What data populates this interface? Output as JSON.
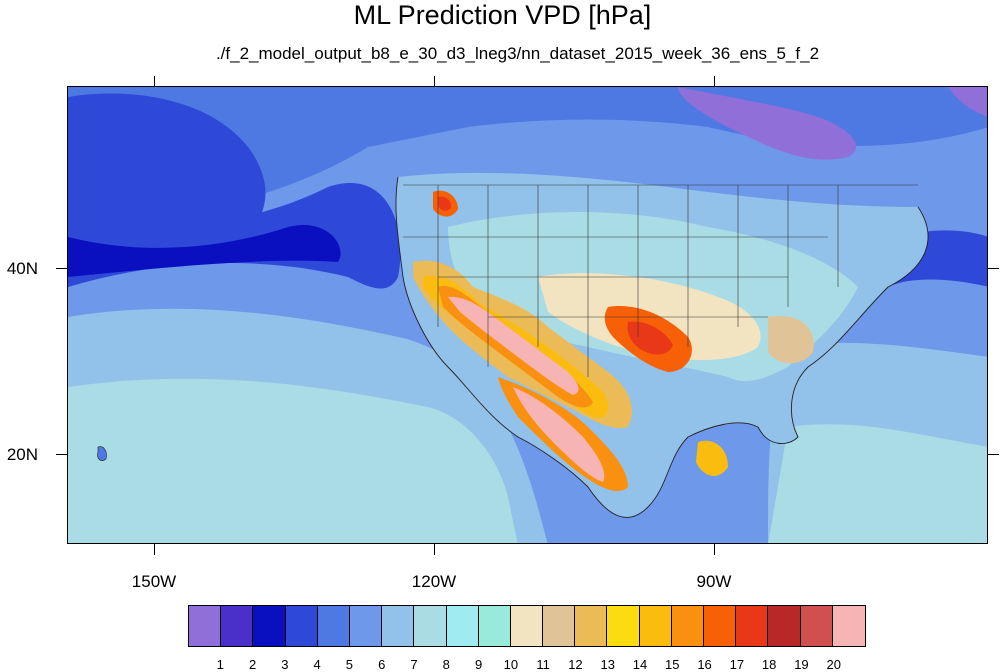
{
  "title": "ML Prediction VPD [hPa]",
  "subtitle": "./f_2_model_output_b8_e_30_d3_lneg3/nn_dataset_2015_week_36_ens_5_f_2",
  "axes": {
    "y_labels": [
      "40N",
      "20N"
    ],
    "x_labels": [
      "150W",
      "120W",
      "90W"
    ]
  },
  "colorbar": {
    "labels": [
      "1",
      "2",
      "3",
      "4",
      "5",
      "6",
      "7",
      "8",
      "9",
      "10",
      "11",
      "12",
      "13",
      "14",
      "15",
      "16",
      "17",
      "18",
      "19",
      "20"
    ],
    "colors": [
      "#9070d8",
      "#4a30c8",
      "#0a10c0",
      "#2e48d8",
      "#4e78e2",
      "#6e98ea",
      "#92c1e9",
      "#aadce6",
      "#a0eaf2",
      "#9aeadc",
      "#f2e4c0",
      "#e0c498",
      "#ebbb58",
      "#fadc10",
      "#fbbc10",
      "#fa9010",
      "#f86008",
      "#e83818",
      "#b82828",
      "#d05050",
      "#f7b4b4"
    ]
  }
}
